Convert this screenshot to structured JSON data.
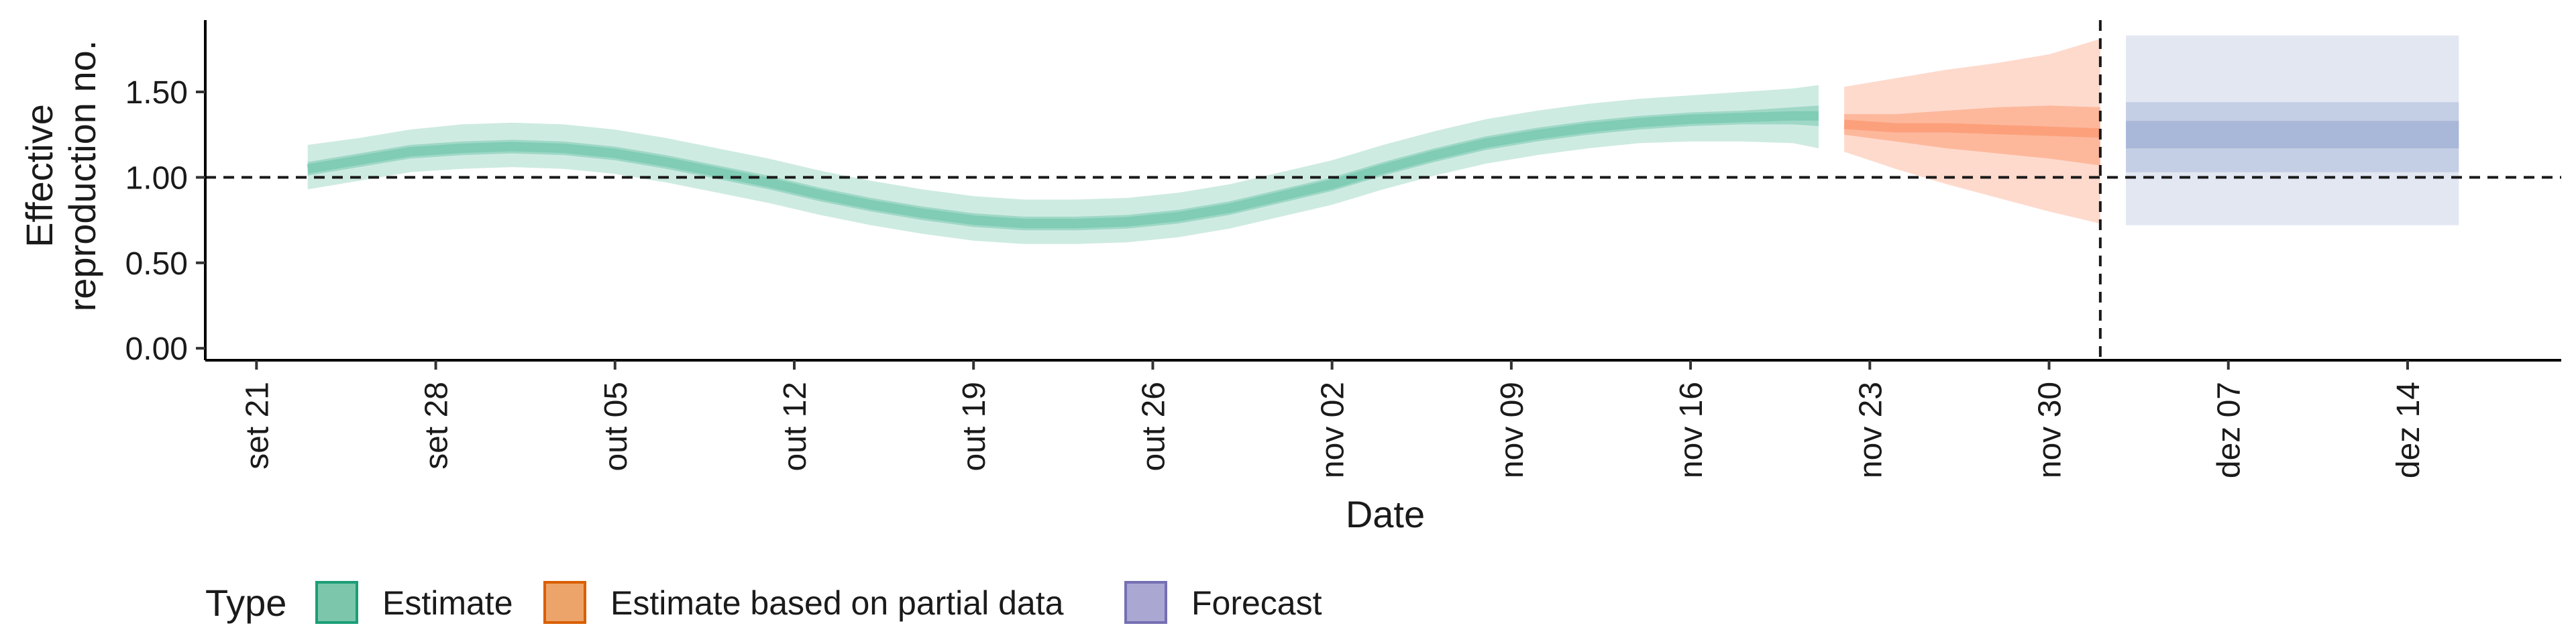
{
  "chart_data": {
    "type": "area",
    "xlabel": "Date",
    "ylabel_lines": [
      "Effective",
      "reproduction no."
    ],
    "ylim": [
      -0.07,
      1.92
    ],
    "xlim": [
      "2020-09-19",
      "2020-12-20"
    ],
    "y_ticks": [
      {
        "value": 0.0,
        "label": "0.00"
      },
      {
        "value": 0.5,
        "label": "0.50"
      },
      {
        "value": 1.0,
        "label": "1.00"
      },
      {
        "value": 1.5,
        "label": "1.50"
      }
    ],
    "x_ticks": [
      {
        "date": "2020-09-21",
        "label": "set 21"
      },
      {
        "date": "2020-09-28",
        "label": "set 28"
      },
      {
        "date": "2020-10-05",
        "label": "out 05"
      },
      {
        "date": "2020-10-12",
        "label": "out 12"
      },
      {
        "date": "2020-10-19",
        "label": "out 19"
      },
      {
        "date": "2020-10-26",
        "label": "out 26"
      },
      {
        "date": "2020-11-02",
        "label": "nov 02"
      },
      {
        "date": "2020-11-09",
        "label": "nov 09"
      },
      {
        "date": "2020-11-16",
        "label": "nov 16"
      },
      {
        "date": "2020-11-23",
        "label": "nov 23"
      },
      {
        "date": "2020-11-30",
        "label": "nov 30"
      },
      {
        "date": "2020-12-07",
        "label": "dez 07"
      },
      {
        "date": "2020-12-14",
        "label": "dez 14"
      }
    ],
    "reference_lines": {
      "horizontal_value": 1.0,
      "vertical_date": "2020-12-02"
    },
    "series": [
      {
        "name": "Estimate",
        "color": "#66c2a5",
        "x": [
          "2020-09-23",
          "2020-09-25",
          "2020-09-27",
          "2020-09-29",
          "2020-10-01",
          "2020-10-03",
          "2020-10-05",
          "2020-10-07",
          "2020-10-09",
          "2020-10-11",
          "2020-10-13",
          "2020-10-15",
          "2020-10-17",
          "2020-10-19",
          "2020-10-21",
          "2020-10-23",
          "2020-10-25",
          "2020-10-27",
          "2020-10-29",
          "2020-10-31",
          "2020-11-02",
          "2020-11-04",
          "2020-11-06",
          "2020-11-08",
          "2020-11-10",
          "2020-11-12",
          "2020-11-14",
          "2020-11-16",
          "2020-11-18",
          "2020-11-20",
          "2020-11-21"
        ],
        "median": [
          1.05,
          1.1,
          1.15,
          1.17,
          1.18,
          1.17,
          1.14,
          1.09,
          1.03,
          0.97,
          0.9,
          0.84,
          0.79,
          0.75,
          0.73,
          0.73,
          0.74,
          0.77,
          0.82,
          0.89,
          0.96,
          1.05,
          1.13,
          1.2,
          1.25,
          1.29,
          1.32,
          1.34,
          1.35,
          1.36,
          1.36
        ],
        "lower50": [
          1.01,
          1.06,
          1.11,
          1.13,
          1.14,
          1.13,
          1.1,
          1.05,
          0.99,
          0.93,
          0.86,
          0.8,
          0.75,
          0.71,
          0.69,
          0.69,
          0.7,
          0.73,
          0.78,
          0.85,
          0.92,
          1.01,
          1.09,
          1.16,
          1.21,
          1.25,
          1.28,
          1.3,
          1.31,
          1.31,
          1.3
        ],
        "upper50": [
          1.09,
          1.14,
          1.19,
          1.21,
          1.22,
          1.21,
          1.18,
          1.13,
          1.07,
          1.01,
          0.94,
          0.88,
          0.83,
          0.79,
          0.77,
          0.77,
          0.78,
          0.81,
          0.86,
          0.93,
          1.0,
          1.09,
          1.17,
          1.24,
          1.29,
          1.33,
          1.36,
          1.38,
          1.39,
          1.41,
          1.42
        ],
        "lower90": [
          0.93,
          0.98,
          1.03,
          1.05,
          1.06,
          1.05,
          1.02,
          0.97,
          0.91,
          0.85,
          0.78,
          0.72,
          0.67,
          0.63,
          0.61,
          0.61,
          0.62,
          0.65,
          0.7,
          0.77,
          0.84,
          0.93,
          1.01,
          1.08,
          1.13,
          1.17,
          1.2,
          1.21,
          1.21,
          1.2,
          1.17
        ],
        "upper90": [
          1.19,
          1.23,
          1.28,
          1.31,
          1.32,
          1.31,
          1.28,
          1.23,
          1.17,
          1.11,
          1.04,
          0.98,
          0.93,
          0.89,
          0.87,
          0.87,
          0.88,
          0.91,
          0.96,
          1.03,
          1.1,
          1.19,
          1.27,
          1.34,
          1.39,
          1.43,
          1.46,
          1.48,
          1.5,
          1.52,
          1.54
        ]
      },
      {
        "name": "Estimate based on partial data",
        "color": "#fc8d62",
        "x": [
          "2020-11-22",
          "2020-11-24",
          "2020-11-26",
          "2020-11-28",
          "2020-11-30",
          "2020-12-02"
        ],
        "median": [
          1.31,
          1.29,
          1.29,
          1.28,
          1.27,
          1.26
        ],
        "lower50": [
          1.25,
          1.21,
          1.17,
          1.14,
          1.11,
          1.07
        ],
        "upper50": [
          1.37,
          1.37,
          1.39,
          1.41,
          1.42,
          1.41
        ],
        "lower90": [
          1.15,
          1.05,
          0.96,
          0.88,
          0.8,
          0.73
        ],
        "upper90": [
          1.53,
          1.58,
          1.63,
          1.67,
          1.72,
          1.81
        ]
      },
      {
        "name": "Forecast",
        "color": "#8da0cb",
        "x": [
          "2020-12-03",
          "2020-12-16"
        ],
        "median": [
          1.25,
          1.25
        ],
        "lower50": [
          1.17,
          1.17
        ],
        "upper50": [
          1.33,
          1.33
        ],
        "lower25": [
          1.25,
          1.25
        ],
        "lower90": [
          0.72,
          0.72
        ],
        "upper90": [
          1.83,
          1.83
        ],
        "lower50b": [
          1.03,
          1.03
        ],
        "upper50b": [
          1.44,
          1.44
        ]
      }
    ],
    "legend": {
      "position": "bottom-left",
      "title": "Type",
      "entries": [
        {
          "label": "Estimate",
          "fill": "#7cc7ab",
          "stroke": "#1b9e77"
        },
        {
          "label": "Estimate based on partial data",
          "fill": "#eda46a",
          "stroke": "#d95f02"
        },
        {
          "label": "Forecast",
          "fill": "#aaa7d3",
          "stroke": "#7570b3"
        }
      ]
    }
  }
}
